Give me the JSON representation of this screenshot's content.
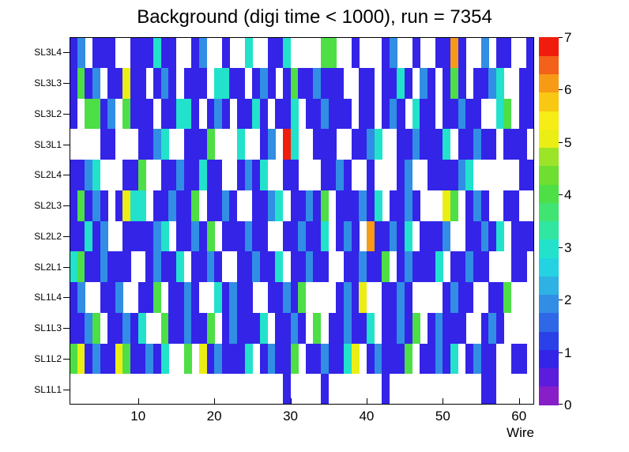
{
  "chart_data": {
    "type": "heatmap",
    "title": "Background (digi time < 1000), run = 7354",
    "xlabel": "Wire",
    "ylabel": "",
    "x_range": [
      1,
      62
    ],
    "x_ticks": [
      10,
      20,
      30,
      40,
      50,
      60
    ],
    "z_range": [
      0,
      7
    ],
    "z_ticks": [
      0,
      1,
      2,
      3,
      4,
      5,
      6,
      7
    ],
    "grid": false,
    "legend_position": "right-colorbar",
    "palette": [
      "#871ec8",
      "#5b1ddb",
      "#3324e8",
      "#2a41e8",
      "#2e68e6",
      "#318ee4",
      "#2eb2e4",
      "#24d2e2",
      "#22e2cc",
      "#30e6a0",
      "#40e472",
      "#4ede46",
      "#6ede30",
      "#9ce428",
      "#ebee14",
      "#f6ec16",
      "#f8c812",
      "#f79a16",
      "#f4611a",
      "#f01c0c"
    ],
    "rows_note": "rows listed top-to-bottom as displayed; values are counts per wire bin, 0 = empty (white)",
    "rows": [
      {
        "label": "SL3L4",
        "values": [
          1,
          2,
          0,
          1,
          1,
          1,
          0,
          0,
          1,
          1,
          1,
          3,
          1,
          1,
          0,
          0,
          1,
          2,
          0,
          0,
          1,
          0,
          0,
          3,
          0,
          0,
          1,
          1,
          3,
          0,
          0,
          0,
          0,
          4,
          4,
          0,
          0,
          1,
          0,
          0,
          0,
          1,
          2,
          0,
          0,
          1,
          0,
          0,
          1,
          1,
          6,
          1,
          0,
          0,
          2,
          0,
          1,
          1,
          0,
          0,
          1
        ]
      },
      {
        "label": "SL3L3",
        "values": [
          1,
          4,
          1,
          2,
          0,
          1,
          1,
          5,
          1,
          1,
          0,
          1,
          2,
          1,
          0,
          1,
          1,
          1,
          0,
          3,
          3,
          1,
          1,
          0,
          1,
          2,
          1,
          0,
          1,
          4,
          1,
          1,
          2,
          1,
          1,
          1,
          0,
          0,
          1,
          1,
          0,
          1,
          1,
          3,
          1,
          0,
          2,
          1,
          0,
          1,
          4,
          1,
          0,
          1,
          1,
          2,
          3,
          0,
          0,
          1,
          1
        ]
      },
      {
        "label": "SL3L2",
        "values": [
          1,
          0,
          4,
          4,
          1,
          2,
          0,
          4,
          1,
          1,
          1,
          0,
          1,
          1,
          3,
          3,
          1,
          0,
          1,
          2,
          1,
          0,
          1,
          1,
          3,
          1,
          0,
          1,
          1,
          3,
          0,
          1,
          1,
          2,
          1,
          1,
          1,
          0,
          1,
          1,
          0,
          1,
          2,
          1,
          0,
          3,
          1,
          1,
          0,
          1,
          1,
          2,
          1,
          1,
          0,
          0,
          3,
          4,
          0,
          1,
          1
        ]
      },
      {
        "label": "SL3L1",
        "values": [
          0,
          0,
          0,
          0,
          1,
          1,
          0,
          0,
          0,
          1,
          1,
          2,
          3,
          0,
          0,
          1,
          1,
          1,
          4,
          0,
          0,
          0,
          3,
          0,
          0,
          1,
          2,
          0,
          7,
          3,
          0,
          0,
          1,
          1,
          1,
          0,
          0,
          1,
          1,
          2,
          3,
          0,
          0,
          1,
          1,
          2,
          1,
          1,
          1,
          3,
          0,
          1,
          1,
          2,
          1,
          1,
          0,
          1,
          1,
          1,
          0
        ]
      },
      {
        "label": "SL2L4",
        "values": [
          1,
          1,
          2,
          3,
          0,
          0,
          0,
          1,
          1,
          4,
          0,
          0,
          1,
          1,
          2,
          1,
          1,
          3,
          1,
          1,
          0,
          0,
          1,
          2,
          1,
          3,
          0,
          0,
          1,
          1,
          0,
          0,
          0,
          1,
          1,
          2,
          1,
          0,
          0,
          1,
          0,
          0,
          0,
          1,
          2,
          0,
          0,
          1,
          1,
          1,
          1,
          2,
          3,
          0,
          0,
          0,
          0,
          0,
          0,
          1,
          1
        ]
      },
      {
        "label": "SL2L3",
        "values": [
          1,
          4,
          1,
          2,
          1,
          0,
          1,
          5,
          3,
          3,
          0,
          1,
          1,
          2,
          1,
          1,
          4,
          0,
          1,
          1,
          2,
          1,
          0,
          0,
          1,
          1,
          2,
          3,
          0,
          1,
          1,
          2,
          1,
          4,
          0,
          1,
          1,
          1,
          2,
          1,
          3,
          0,
          1,
          1,
          2,
          1,
          0,
          0,
          0,
          5,
          4,
          0,
          1,
          2,
          1,
          0,
          0,
          1,
          1,
          0,
          0
        ]
      },
      {
        "label": "SL2L2",
        "values": [
          1,
          1,
          3,
          1,
          2,
          0,
          0,
          1,
          1,
          1,
          1,
          2,
          3,
          0,
          1,
          1,
          2,
          1,
          4,
          0,
          1,
          1,
          1,
          2,
          1,
          1,
          0,
          0,
          1,
          1,
          2,
          1,
          1,
          3,
          0,
          1,
          2,
          1,
          0,
          6,
          1,
          1,
          2,
          1,
          3,
          0,
          1,
          1,
          1,
          2,
          0,
          0,
          1,
          1,
          2,
          1,
          3,
          0,
          1,
          1,
          1
        ]
      },
      {
        "label": "SL2L1",
        "values": [
          3,
          4,
          1,
          1,
          2,
          1,
          1,
          1,
          0,
          0,
          1,
          2,
          1,
          1,
          3,
          0,
          1,
          1,
          2,
          1,
          0,
          0,
          1,
          1,
          2,
          1,
          1,
          3,
          0,
          1,
          1,
          2,
          1,
          1,
          0,
          0,
          1,
          1,
          2,
          1,
          1,
          4,
          0,
          1,
          2,
          1,
          1,
          1,
          3,
          0,
          1,
          1,
          2,
          1,
          1,
          0,
          0,
          0,
          1,
          1,
          0
        ]
      },
      {
        "label": "SL1L4",
        "values": [
          1,
          2,
          0,
          0,
          1,
          1,
          2,
          0,
          0,
          1,
          1,
          4,
          0,
          1,
          1,
          2,
          1,
          0,
          0,
          3,
          1,
          2,
          1,
          1,
          0,
          0,
          1,
          1,
          2,
          1,
          4,
          0,
          0,
          0,
          0,
          1,
          2,
          1,
          5,
          0,
          0,
          1,
          1,
          2,
          1,
          0,
          0,
          0,
          0,
          1,
          2,
          1,
          1,
          0,
          0,
          1,
          1,
          4,
          0,
          0,
          0
        ]
      },
      {
        "label": "SL1L3",
        "values": [
          1,
          1,
          2,
          4,
          0,
          1,
          1,
          2,
          1,
          3,
          0,
          0,
          4,
          1,
          1,
          2,
          1,
          1,
          4,
          0,
          1,
          2,
          1,
          1,
          1,
          3,
          0,
          1,
          1,
          2,
          1,
          0,
          4,
          0,
          1,
          1,
          2,
          1,
          1,
          3,
          0,
          1,
          1,
          2,
          1,
          4,
          0,
          1,
          2,
          1,
          1,
          1,
          0,
          0,
          1,
          2,
          1,
          0,
          0,
          0,
          0
        ]
      },
      {
        "label": "SL1L2",
        "values": [
          4,
          5,
          1,
          2,
          1,
          1,
          5,
          4,
          1,
          1,
          2,
          1,
          3,
          0,
          0,
          4,
          0,
          5,
          1,
          2,
          1,
          1,
          1,
          3,
          0,
          1,
          2,
          1,
          1,
          4,
          0,
          1,
          1,
          2,
          1,
          1,
          3,
          5,
          0,
          1,
          2,
          1,
          1,
          1,
          4,
          0,
          1,
          1,
          2,
          1,
          3,
          0,
          1,
          2,
          1,
          1,
          0,
          0,
          1,
          1,
          0
        ]
      },
      {
        "label": "SL1L1",
        "values": [
          0,
          0,
          0,
          0,
          0,
          0,
          0,
          0,
          0,
          0,
          0,
          0,
          0,
          0,
          0,
          0,
          0,
          0,
          0,
          0,
          0,
          0,
          0,
          0,
          0,
          0,
          0,
          0,
          1,
          0,
          0,
          0,
          0,
          1,
          0,
          0,
          0,
          0,
          0,
          0,
          0,
          1,
          0,
          0,
          0,
          0,
          0,
          0,
          0,
          0,
          0,
          0,
          0,
          0,
          1,
          1,
          0,
          0,
          0,
          0,
          0
        ]
      }
    ]
  }
}
